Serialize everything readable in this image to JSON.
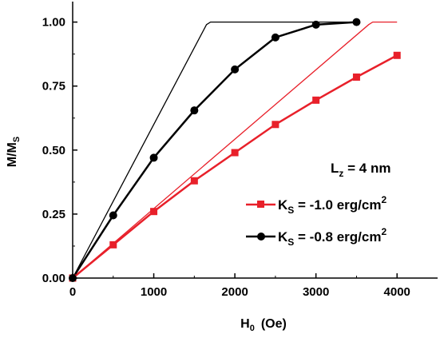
{
  "chart_data": {
    "type": "line",
    "xlabel": "H",
    "xlabel_sub": "0",
    "xlabel_unit": "(Oe)",
    "ylabel": "M/M",
    "ylabel_sub": "S",
    "xlim": [
      0,
      4500
    ],
    "ylim": [
      0,
      1.08
    ],
    "x_ticks": [
      0,
      1000,
      2000,
      3000,
      4000
    ],
    "x_tick_labels": [
      "0",
      "1000",
      "2000",
      "3000",
      "4000"
    ],
    "y_ticks": [
      0,
      0.25,
      0.5,
      0.75,
      1.0
    ],
    "y_tick_labels": [
      "0.00",
      "0.25",
      "0.50",
      "0.75",
      "1.00"
    ],
    "annotation": {
      "main": "L",
      "sub": "z",
      "rest": " = 4 nm"
    },
    "series": [
      {
        "name_main": "K",
        "name_sub": "S",
        "name_rest": " = -1.0 erg/cm",
        "name_sup": "2",
        "color": "#e8202a",
        "marker": "square",
        "x": [
          0,
          500,
          1000,
          1500,
          2000,
          2500,
          3000,
          3500,
          4000
        ],
        "y": [
          0.0,
          0.13,
          0.26,
          0.38,
          0.49,
          0.6,
          0.695,
          0.785,
          0.87
        ]
      },
      {
        "name_main": "K",
        "name_sub": "S",
        "name_rest": " = -0.8 erg/cm",
        "name_sup": "2",
        "color": "#000000",
        "marker": "circle",
        "x": [
          0,
          500,
          1000,
          1500,
          2000,
          2500,
          3000,
          3500
        ],
        "y": [
          0.0,
          0.245,
          0.47,
          0.655,
          0.815,
          0.94,
          0.99,
          1.0
        ]
      }
    ],
    "reference_lines": [
      {
        "color": "#e8202a",
        "x": [
          0,
          3650,
          3700,
          4000
        ],
        "y": [
          0,
          0.99,
          1.0,
          1.0
        ]
      },
      {
        "color": "#000000",
        "x": [
          0,
          1650,
          1700,
          3500
        ],
        "y": [
          0,
          0.99,
          1.0,
          1.0
        ]
      }
    ]
  }
}
